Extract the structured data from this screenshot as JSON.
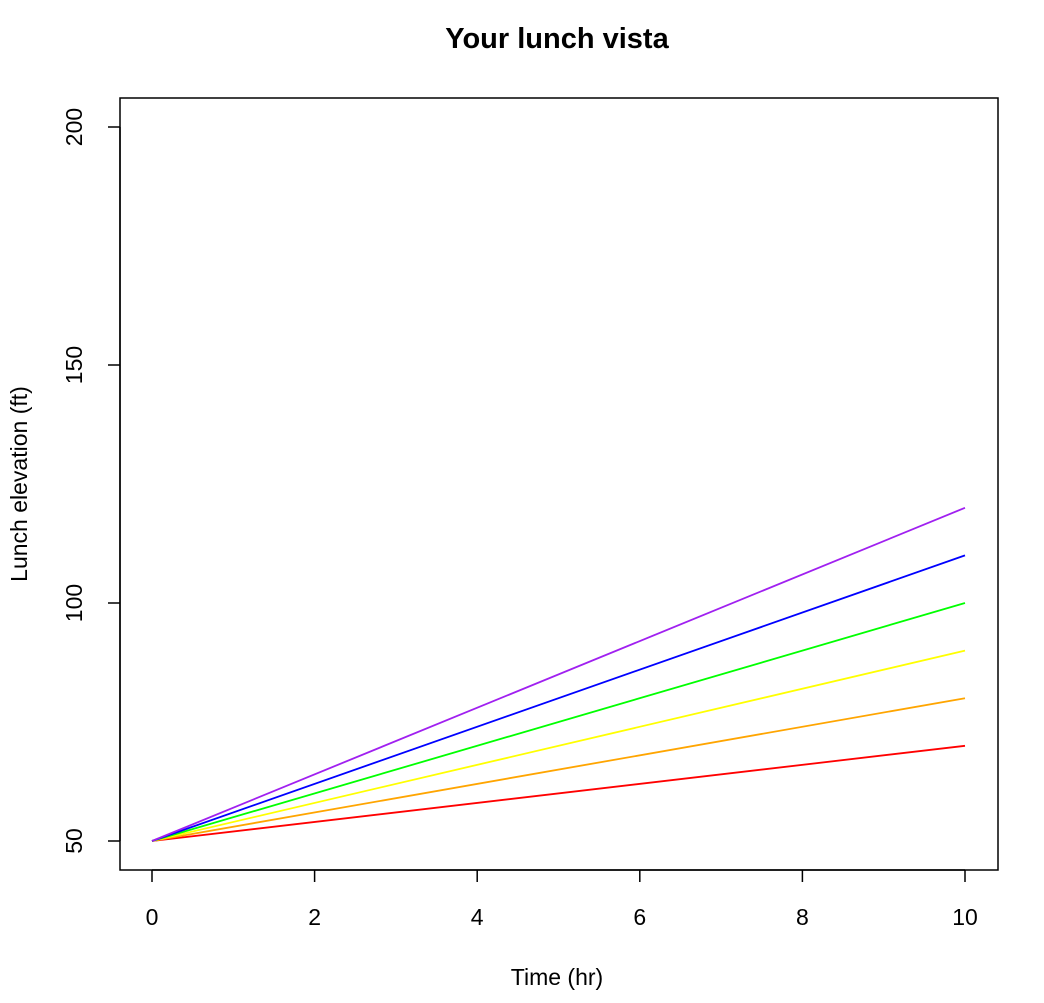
{
  "chart_data": {
    "type": "line",
    "title": "Your lunch vista",
    "xlabel": "Time (hr)",
    "ylabel": "Lunch elevation (ft)",
    "xlim": [
      0,
      10
    ],
    "ylim": [
      50,
      200
    ],
    "xticks": [
      0,
      2,
      4,
      6,
      8,
      10
    ],
    "yticks": [
      50,
      100,
      150,
      200
    ],
    "grid": false,
    "legend": "none",
    "series": [
      {
        "color": "#ff0000",
        "x": [
          0,
          10
        ],
        "y": [
          50,
          70
        ]
      },
      {
        "color": "#ffa500",
        "x": [
          0,
          10
        ],
        "y": [
          50,
          80
        ]
      },
      {
        "color": "#ffff00",
        "x": [
          0,
          10
        ],
        "y": [
          50,
          90
        ]
      },
      {
        "color": "#00ff00",
        "x": [
          0,
          10
        ],
        "y": [
          50,
          100
        ]
      },
      {
        "color": "#0000ff",
        "x": [
          0,
          10
        ],
        "y": [
          50,
          110
        ]
      },
      {
        "color": "#a020f0",
        "x": [
          0,
          10
        ],
        "y": [
          50,
          120
        ]
      }
    ]
  }
}
